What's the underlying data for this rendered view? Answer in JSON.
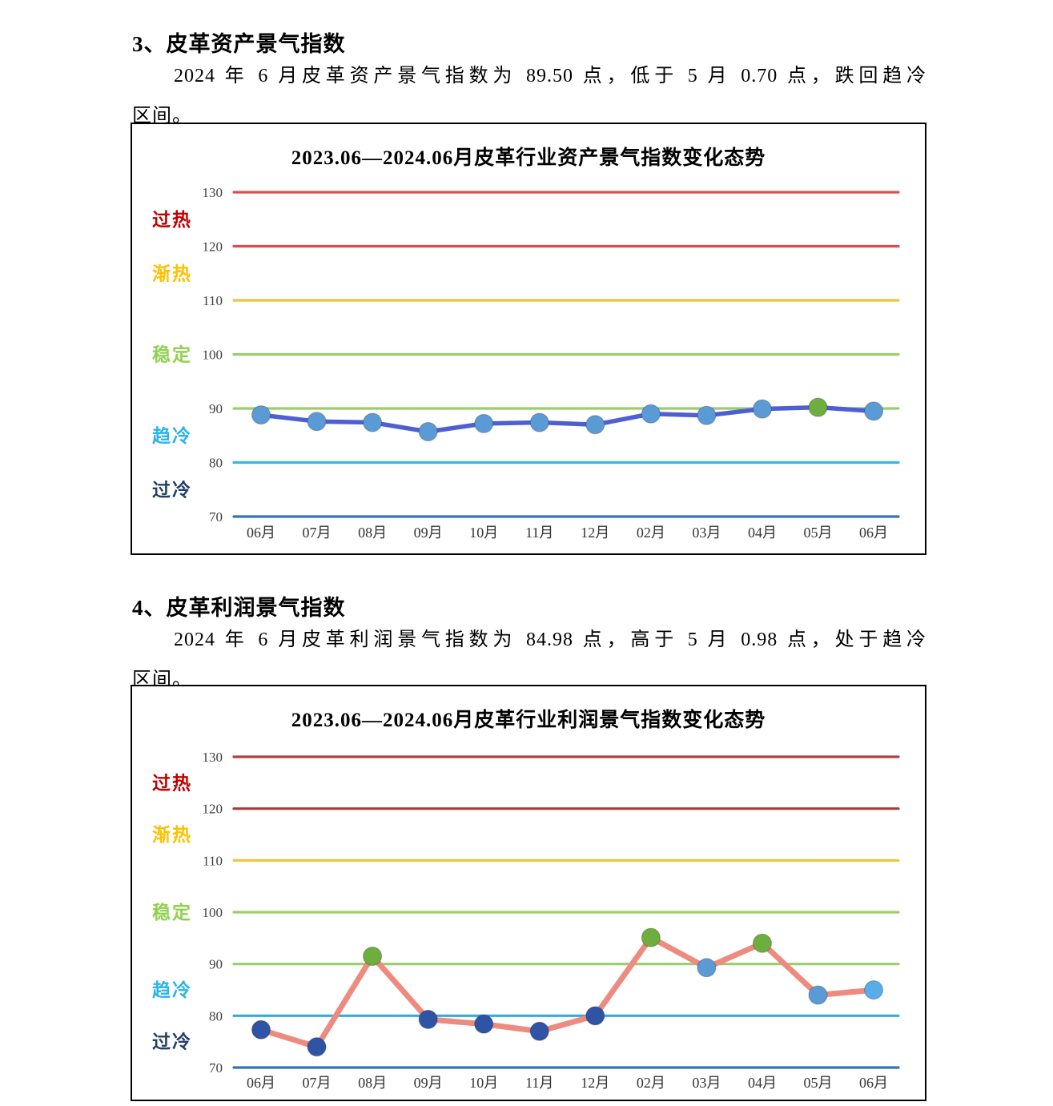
{
  "section3": {
    "heading": "3、皮革资产景气指数",
    "para_line1": "2024 年 6 月皮革资产景气指数为 89.50 点，低于 5 月 0.70 点，跌回趋冷",
    "para_line2": "区间。"
  },
  "section4": {
    "heading": "4、皮革利润景气指数",
    "para_line1": "2024 年 6 月皮革利润景气指数为 84.98 点，高于 5 月 0.98 点，处于趋冷",
    "para_line2": "区间。"
  },
  "chart_data": [
    {
      "type": "line",
      "title": "2023.06—2024.06月皮革行业资产景气指数变化态势",
      "categories": [
        "06月",
        "07月",
        "08月",
        "09月",
        "10月",
        "11月",
        "12月",
        "02月",
        "03月",
        "04月",
        "05月",
        "06月"
      ],
      "series": [
        {
          "name": "皮革资产景气指数",
          "values": [
            88.8,
            87.6,
            87.4,
            85.7,
            87.2,
            87.4,
            87.0,
            89.0,
            88.7,
            89.9,
            90.2,
            89.5
          ]
        }
      ],
      "xlabel": "",
      "ylabel": "",
      "ylim": [
        70,
        130
      ],
      "yticks": [
        130,
        120,
        110,
        100,
        90,
        80,
        70
      ],
      "grid": false,
      "legend": "none",
      "grid_lines": [
        {
          "value": 130,
          "color": "#E04B52"
        },
        {
          "value": 120,
          "color": "#E04B52"
        },
        {
          "value": 110,
          "color": "#EFC43A"
        },
        {
          "value": 100,
          "color": "#9ACD6E"
        },
        {
          "value": 90,
          "color": "#9ACD6E"
        },
        {
          "value": 80,
          "color": "#38B6E8"
        },
        {
          "value": 70,
          "color": "#2E75B6"
        }
      ],
      "zone_labels": [
        {
          "label": "过热",
          "at": 125,
          "color": "#C00000"
        },
        {
          "label": "渐热",
          "at": 115,
          "color": "#FFC000"
        },
        {
          "label": "稳定",
          "at": 100,
          "color": "#92D050"
        },
        {
          "label": "趋冷",
          "at": 85,
          "color": "#29B4E9"
        },
        {
          "label": "过冷",
          "at": 75,
          "color": "#24406B"
        }
      ],
      "line_color": "#4E5FD3",
      "marker_colors": [
        "#5B9BD5",
        "#5B9BD5",
        "#5B9BD5",
        "#5B9BD5",
        "#5B9BD5",
        "#5B9BD5",
        "#5B9BD5",
        "#5B9BD5",
        "#5B9BD5",
        "#5B9BD5",
        "#6EAE3F",
        "#5B9BD5"
      ]
    },
    {
      "type": "line",
      "title": "2023.06—2024.06月皮革行业利润景气指数变化态势",
      "categories": [
        "06月",
        "07月",
        "08月",
        "09月",
        "10月",
        "11月",
        "12月",
        "02月",
        "03月",
        "04月",
        "05月",
        "06月"
      ],
      "series": [
        {
          "name": "皮革利润景气指数",
          "values": [
            77.3,
            74.0,
            91.5,
            79.3,
            78.4,
            77.0,
            80.0,
            95.1,
            89.3,
            94.0,
            84.0,
            84.98
          ]
        }
      ],
      "xlabel": "",
      "ylabel": "",
      "ylim": [
        70,
        130
      ],
      "yticks": [
        130,
        120,
        110,
        100,
        90,
        80,
        70
      ],
      "grid": false,
      "legend": "none",
      "grid_lines": [
        {
          "value": 130,
          "color": "#B04043"
        },
        {
          "value": 120,
          "color": "#A73B3F"
        },
        {
          "value": 110,
          "color": "#EFC43A"
        },
        {
          "value": 100,
          "color": "#9ACD6E"
        },
        {
          "value": 90,
          "color": "#9ACD6E"
        },
        {
          "value": 80,
          "color": "#2FAFE0"
        },
        {
          "value": 70,
          "color": "#2E75B6"
        }
      ],
      "zone_labels": [
        {
          "label": "过热",
          "at": 125,
          "color": "#C00000"
        },
        {
          "label": "渐热",
          "at": 115,
          "color": "#FFC000"
        },
        {
          "label": "稳定",
          "at": 100,
          "color": "#92D050"
        },
        {
          "label": "趋冷",
          "at": 85,
          "color": "#29B4E9"
        },
        {
          "label": "过冷",
          "at": 75,
          "color": "#24406B"
        }
      ],
      "line_color": "#ED8B80",
      "marker_colors": [
        "#2F54A5",
        "#2F54A5",
        "#6EAE3F",
        "#2F54A5",
        "#2F54A5",
        "#2F54A5",
        "#2F54A5",
        "#6EAE3F",
        "#5B9BD5",
        "#6EAE3F",
        "#5B9BD5",
        "#58ACE8"
      ]
    }
  ]
}
